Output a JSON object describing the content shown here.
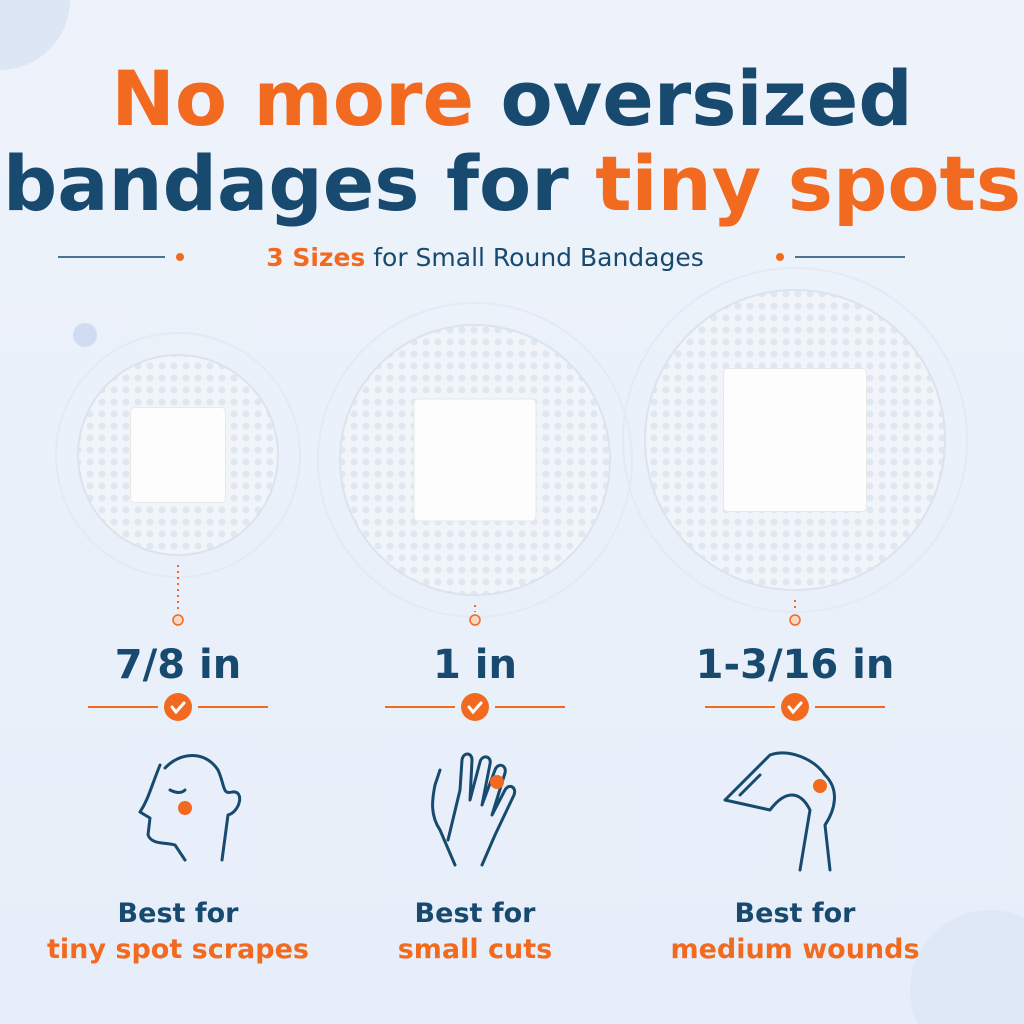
{
  "headline": {
    "line1": [
      "No more",
      "oversized"
    ],
    "line2": [
      "bandages for",
      "tiny spots"
    ]
  },
  "subtitle": {
    "highlight": "3 Sizes",
    "rest": "for Small Round Bandages"
  },
  "items": [
    {
      "size": "7/8 in",
      "best": "Best for",
      "use": "tiny spot scrapes"
    },
    {
      "size": "1 in",
      "best": "Best for",
      "use": "small cuts"
    },
    {
      "size": "1-3/16 in",
      "best": "Best for",
      "use": "medium wounds"
    }
  ]
}
